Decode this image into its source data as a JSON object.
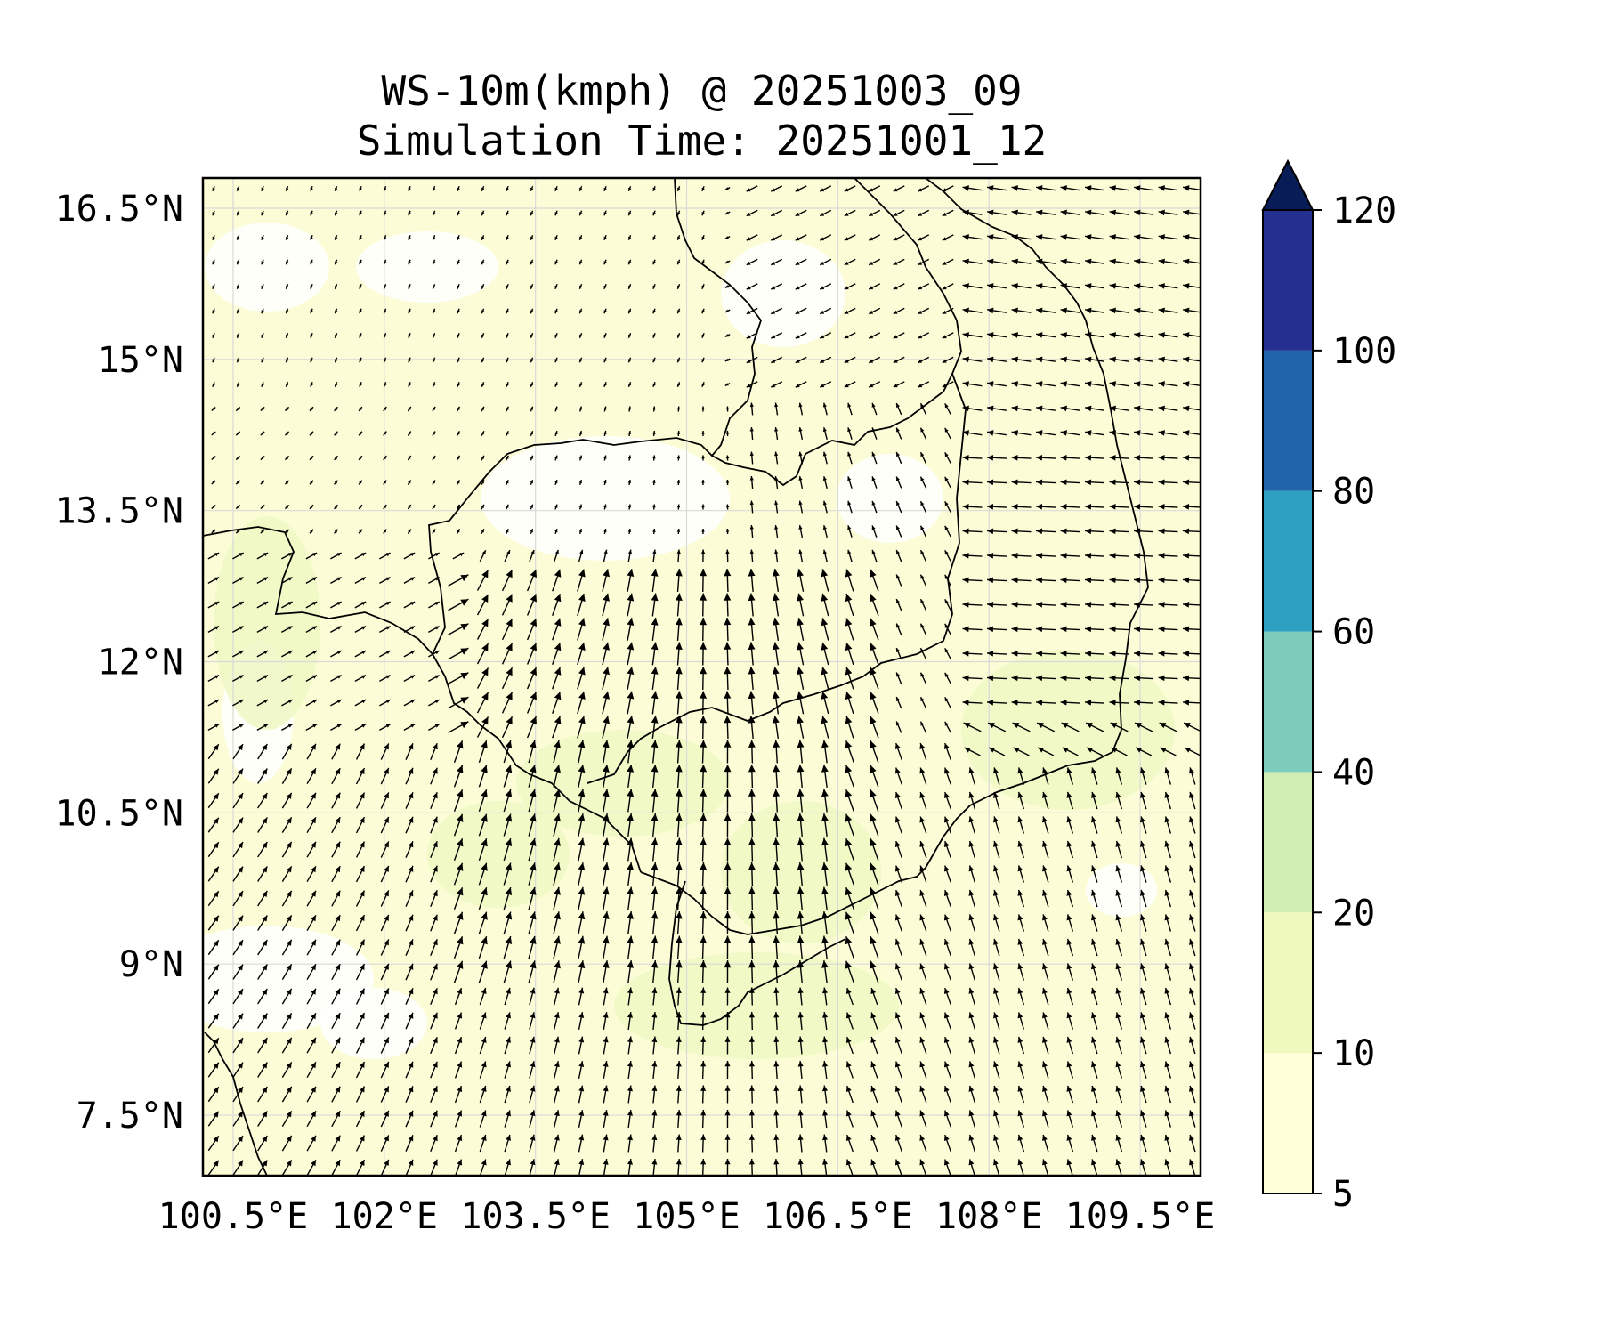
{
  "title": {
    "line1": "WS-10m(kmph) @ 20251003_09",
    "line2": "Simulation Time: 20251001_12"
  },
  "map": {
    "extent": {
      "lon": [
        100.2,
        110.1
      ],
      "lat": [
        6.9,
        16.8
      ]
    },
    "lon_ticks": [
      {
        "value": 100.5,
        "label": "100.5°E"
      },
      {
        "value": 102.0,
        "label": "102°E"
      },
      {
        "value": 103.5,
        "label": "103.5°E"
      },
      {
        "value": 105.0,
        "label": "105°E"
      },
      {
        "value": 106.5,
        "label": "106.5°E"
      },
      {
        "value": 108.0,
        "label": "108°E"
      },
      {
        "value": 109.5,
        "label": "109.5°E"
      }
    ],
    "lat_ticks": [
      {
        "value": 16.5,
        "label": "16.5°N"
      },
      {
        "value": 15.0,
        "label": "15°N"
      },
      {
        "value": 13.5,
        "label": "13.5°N"
      },
      {
        "value": 12.0,
        "label": "12°N"
      },
      {
        "value": 10.5,
        "label": "10.5°N"
      },
      {
        "value": 9.0,
        "label": "9°N"
      },
      {
        "value": 7.5,
        "label": "7.5°N"
      }
    ],
    "gridlines": true,
    "field": "wind vectors at 10 m",
    "colors": {
      "coastline": "#000000",
      "grid": "#d9d9d9",
      "arrow": "#000000"
    }
  },
  "colorbar": {
    "levels": [
      {
        "label": "5"
      },
      {
        "label": "10"
      },
      {
        "label": "20"
      },
      {
        "label": "40"
      },
      {
        "label": "60"
      },
      {
        "label": "80"
      },
      {
        "label": "100"
      },
      {
        "label": "120"
      }
    ],
    "colors": [
      "#ffffd9",
      "#eff9bd",
      "#d0edb3",
      "#7dcbbb",
      "#2ea0c1",
      "#2164ab",
      "#233090"
    ],
    "extend_color": "#081d58",
    "extend": "max"
  }
}
